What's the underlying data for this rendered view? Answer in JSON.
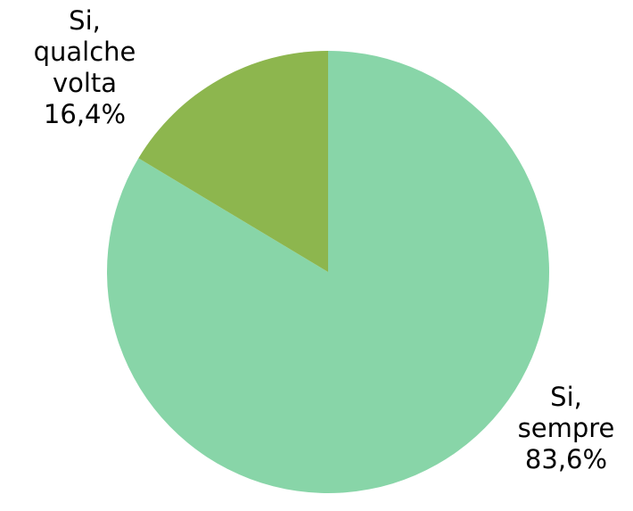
{
  "chart_data": {
    "type": "pie",
    "slices": [
      {
        "name_lines": [
          "Si,",
          "sempre"
        ],
        "value_label": "83,6%",
        "value": 83.6,
        "color": "#88d5a8"
      },
      {
        "name_lines": [
          "Si,",
          "qualche",
          "volta"
        ],
        "value_label": "16,4%",
        "value": 16.4,
        "color": "#8db64e"
      }
    ],
    "start": "12 o'clock",
    "direction": "clockwise",
    "legend": "none"
  }
}
